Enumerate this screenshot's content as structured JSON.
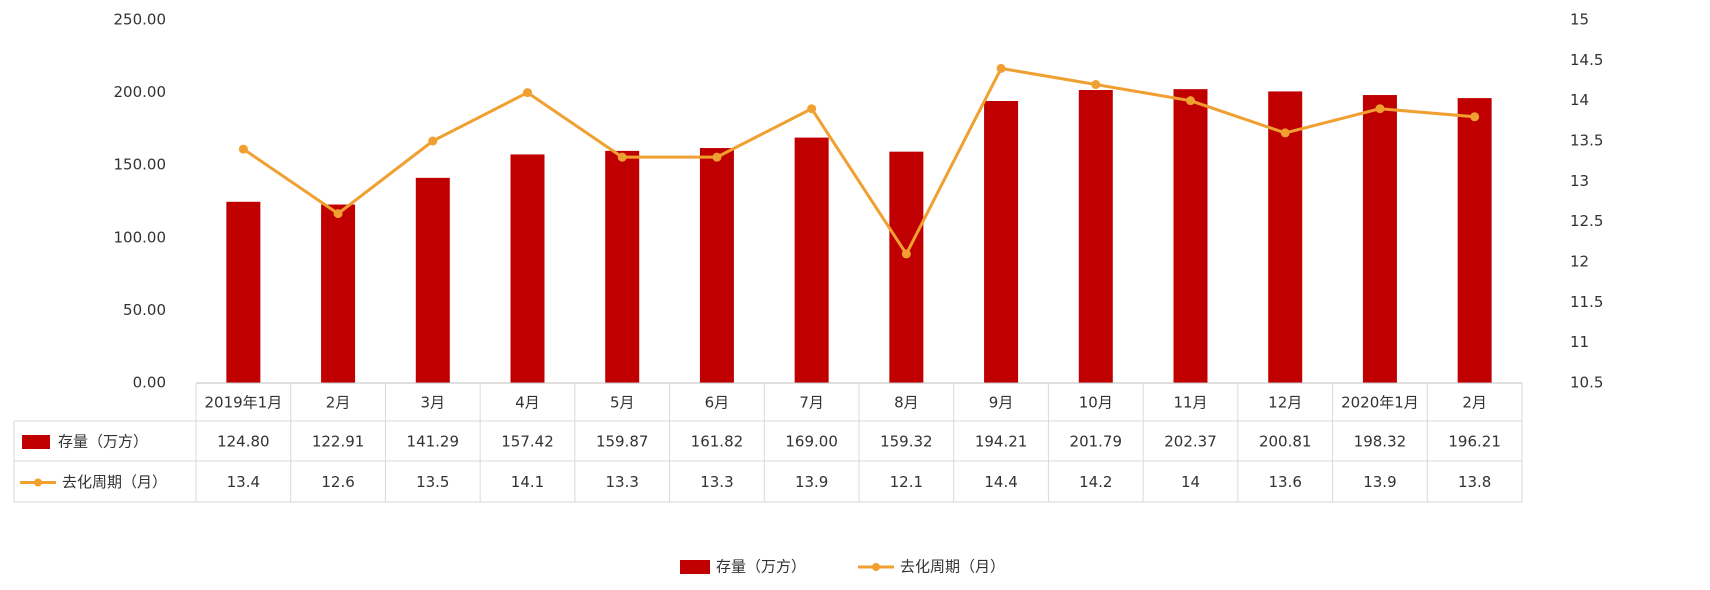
{
  "chart_data": {
    "type": "bar",
    "categories": [
      "2019年1月",
      "2月",
      "3月",
      "4月",
      "5月",
      "6月",
      "7月",
      "8月",
      "9月",
      "10月",
      "11月",
      "12月",
      "2020年1月",
      "2月"
    ],
    "series": [
      {
        "name": "存量（万方）",
        "type": "bar",
        "axis": "left",
        "values": [
          124.8,
          122.91,
          141.29,
          157.42,
          159.87,
          161.82,
          169.0,
          159.32,
          194.21,
          201.79,
          202.37,
          200.81,
          198.32,
          196.21
        ],
        "labels": [
          "124.80",
          "122.91",
          "141.29",
          "157.42",
          "159.87",
          "161.82",
          "169.00",
          "159.32",
          "194.21",
          "201.79",
          "202.37",
          "200.81",
          "198.32",
          "196.21"
        ],
        "color": "#c00000"
      },
      {
        "name": "去化周期（月）",
        "type": "line",
        "axis": "right",
        "values": [
          13.4,
          12.6,
          13.5,
          14.1,
          13.3,
          13.3,
          13.9,
          12.1,
          14.4,
          14.2,
          14,
          13.6,
          13.9,
          13.8
        ],
        "labels": [
          "13.4",
          "12.6",
          "13.5",
          "14.1",
          "13.3",
          "13.3",
          "13.9",
          "12.1",
          "14.4",
          "14.2",
          "14",
          "13.6",
          "13.9",
          "13.8"
        ],
        "color": "#f0a030"
      }
    ],
    "y_left": {
      "ylim": [
        0,
        250
      ],
      "ticks": [
        "0.00",
        "50.00",
        "100.00",
        "150.00",
        "200.00",
        "250.00"
      ]
    },
    "y_right": {
      "ylim": [
        10.5,
        15
      ],
      "ticks": [
        "10.5",
        "11",
        "11.5",
        "12",
        "12.5",
        "13",
        "13.5",
        "14",
        "14.5",
        "15"
      ]
    },
    "legend": {
      "position": "bottom",
      "items": [
        "存量（万方）",
        "去化周期（月）"
      ]
    },
    "grid": false,
    "data_table": true
  }
}
